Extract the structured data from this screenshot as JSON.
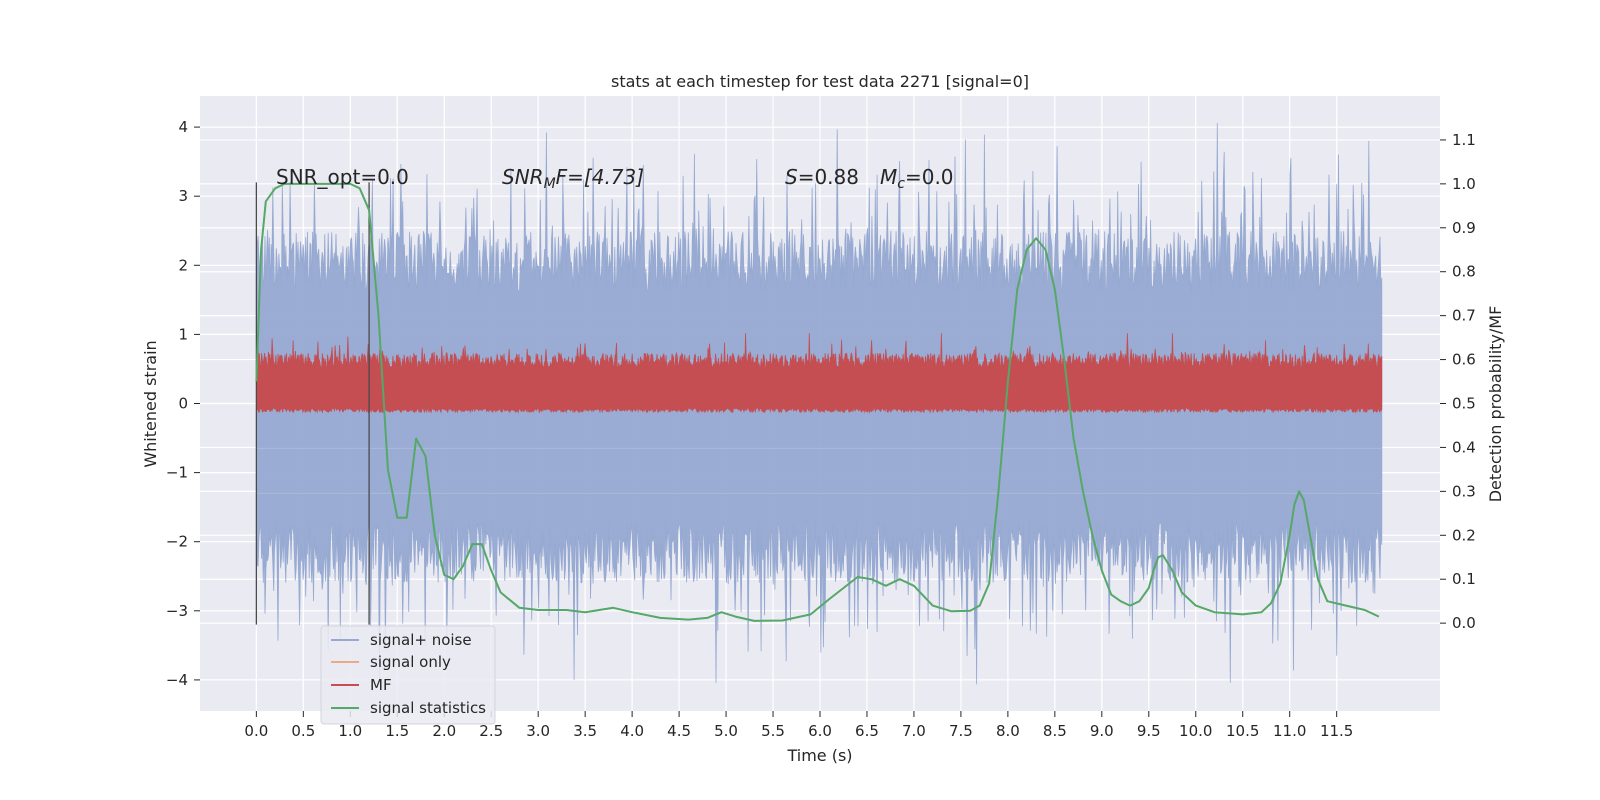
{
  "chart_data": {
    "type": "line",
    "title": "stats at each timestep for test data 2271 [signal=0]",
    "xlabel": "Time (s)",
    "ylabel_left": "Whitened strain",
    "ylabel_right": "Detection probability/MF",
    "xlim": [
      -0.6,
      12.6
    ],
    "ylim_left": [
      -4.45,
      4.45
    ],
    "ylim_right": [
      -0.2,
      1.2
    ],
    "grid": true,
    "x_ticks": [
      0.0,
      0.5,
      1.0,
      1.5,
      2.0,
      2.5,
      3.0,
      3.5,
      4.0,
      4.5,
      5.0,
      5.5,
      6.0,
      6.5,
      7.0,
      7.5,
      8.0,
      8.5,
      9.0,
      9.5,
      10.0,
      10.5,
      11.0,
      11.5
    ],
    "x_tick_labels": [
      "0.0",
      "0.5",
      "1.0",
      "1.5",
      "2.0",
      "2.5",
      "3.0",
      "3.5",
      "4.0",
      "4.5",
      "5.0",
      "5.5",
      "6.0",
      "6.5",
      "7.0",
      "7.5",
      "8.0",
      "8.5",
      "9.0",
      "9.5",
      "10.0",
      "10.5",
      "11.0",
      "11.5"
    ],
    "y_left_ticks": [
      4,
      3,
      2,
      1,
      0,
      -1,
      -2,
      -3,
      -4
    ],
    "y_left_tick_labels": [
      "4",
      "3",
      "2",
      "1",
      "0",
      "−1",
      "−2",
      "−3",
      "−4"
    ],
    "y_right_ticks": [
      1.1,
      1.0,
      0.9,
      0.8,
      0.7,
      0.6,
      0.5,
      0.4,
      0.3,
      0.2,
      0.1,
      0.0
    ],
    "y_right_tick_labels": [
      "1.1",
      "1.0",
      "0.9",
      "0.8",
      "0.7",
      "0.6",
      "0.5",
      "0.4",
      "0.3",
      "0.2",
      "0.1",
      "0.0"
    ],
    "annotations": {
      "snr_opt": "SNR_opt=0.0",
      "snr_mf_sym": "SNR",
      "snr_mf_sub": "M",
      "snr_mf_rest": "F=[4.73]",
      "s_sym": "S",
      "s_val": "=0.88",
      "mc_sym": "M",
      "mc_sub": "c",
      "mc_val": "=0.0"
    },
    "vlines": {
      "x": [
        0.0,
        1.2
      ],
      "y_range": [
        -3.2,
        3.2
      ]
    },
    "legend": {
      "placement": "lower-left",
      "entries": [
        {
          "label": "signal+ noise",
          "color": "#96a9d1"
        },
        {
          "label": "signal only",
          "color": "#eba987"
        },
        {
          "label": "MF",
          "color": "#c44e52"
        },
        {
          "label": "signal statistics",
          "color": "#55a868"
        }
      ]
    },
    "series": [
      {
        "name": "signal+ noise",
        "axis": "left",
        "color": "#96a9d1",
        "t_range": [
          0.0,
          11.98
        ],
        "upper_envelope_level": 1.3,
        "lower_envelope_level": -1.3,
        "max": 4.07,
        "min": -4.07
      },
      {
        "name": "signal only",
        "axis": "left",
        "color": "#eba987",
        "note": "flat zero"
      },
      {
        "name": "MF",
        "axis": "right",
        "color": "#c44e52",
        "t_range": [
          0.0,
          11.98
        ],
        "band": [
          0.49,
          0.58
        ],
        "max": 0.66
      },
      {
        "name": "signal statistics",
        "axis": "right",
        "color": "#55a868",
        "x": [
          0.0,
          0.05,
          0.1,
          0.2,
          0.3,
          0.5,
          0.7,
          0.9,
          1.0,
          1.1,
          1.2,
          1.3,
          1.4,
          1.5,
          1.6,
          1.7,
          1.8,
          1.9,
          2.0,
          2.1,
          2.2,
          2.3,
          2.4,
          2.5,
          2.6,
          2.8,
          3.0,
          3.3,
          3.5,
          3.8,
          4.0,
          4.3,
          4.6,
          4.8,
          4.95,
          5.1,
          5.3,
          5.6,
          5.9,
          6.1,
          6.25,
          6.4,
          6.55,
          6.7,
          6.85,
          7.0,
          7.2,
          7.4,
          7.6,
          7.7,
          7.8,
          7.9,
          8.0,
          8.1,
          8.2,
          8.3,
          8.4,
          8.5,
          8.6,
          8.7,
          8.8,
          8.9,
          9.0,
          9.1,
          9.2,
          9.3,
          9.4,
          9.5,
          9.55,
          9.6,
          9.65,
          9.75,
          9.85,
          10.0,
          10.2,
          10.5,
          10.7,
          10.8,
          10.9,
          11.0,
          11.05,
          11.1,
          11.15,
          11.2,
          11.3,
          11.4,
          11.6,
          11.8,
          11.95
        ],
        "y": [
          0.55,
          0.85,
          0.96,
          0.99,
          1.0,
          1.0,
          1.0,
          1.0,
          1.0,
          0.99,
          0.94,
          0.7,
          0.35,
          0.24,
          0.24,
          0.42,
          0.38,
          0.2,
          0.11,
          0.1,
          0.13,
          0.18,
          0.18,
          0.12,
          0.07,
          0.035,
          0.03,
          0.03,
          0.025,
          0.035,
          0.025,
          0.012,
          0.008,
          0.012,
          0.025,
          0.015,
          0.005,
          0.006,
          0.02,
          0.055,
          0.08,
          0.105,
          0.1,
          0.085,
          0.1,
          0.085,
          0.04,
          0.027,
          0.028,
          0.04,
          0.09,
          0.3,
          0.55,
          0.76,
          0.85,
          0.876,
          0.85,
          0.76,
          0.6,
          0.42,
          0.3,
          0.2,
          0.12,
          0.065,
          0.05,
          0.04,
          0.05,
          0.08,
          0.12,
          0.15,
          0.155,
          0.12,
          0.07,
          0.04,
          0.025,
          0.02,
          0.025,
          0.045,
          0.09,
          0.2,
          0.27,
          0.3,
          0.28,
          0.22,
          0.1,
          0.05,
          0.04,
          0.03,
          0.015
        ]
      }
    ]
  }
}
